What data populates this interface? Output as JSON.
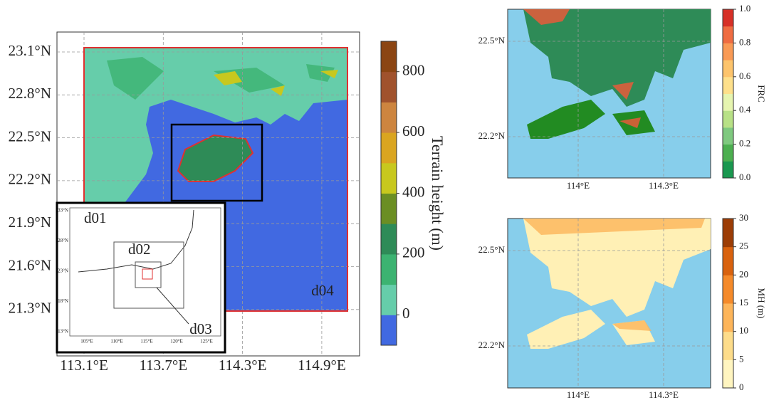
{
  "main_map": {
    "lat_ticks": [
      "23.1°N",
      "22.8°N",
      "22.5°N",
      "22.2°N",
      "21.9°N",
      "21.6°N",
      "21.3°N"
    ],
    "lon_ticks": [
      "113.1°E",
      "113.7°E",
      "114.3°E",
      "114.9°E"
    ],
    "domain_label": "d04",
    "colorbar": {
      "label": "Terrain height (m)",
      "ticks": [
        "0",
        "200",
        "400",
        "600",
        "800"
      ],
      "colors": [
        "#4169e1",
        "#66cdaa",
        "#3cb371",
        "#2e8b57",
        "#6b8e23",
        "#c8c81e",
        "#daa520",
        "#cd853f",
        "#a0522d",
        "#8b4513"
      ]
    }
  },
  "inset": {
    "labels": [
      "d01",
      "d02",
      "d03"
    ],
    "lat_ticks": [
      "33°N",
      "28°N",
      "23°N",
      "18°N",
      "13°N"
    ],
    "lon_ticks": [
      "105°E",
      "110°E",
      "115°E",
      "120°E",
      "125°E"
    ]
  },
  "frc_map": {
    "lat_ticks": [
      "22.5°N",
      "22.2°N"
    ],
    "lon_ticks": [
      "114°E",
      "114.3°E"
    ],
    "colorbar": {
      "label": "FRC",
      "ticks": [
        "0.0",
        "0.2",
        "0.4",
        "0.6",
        "0.8",
        "1.0"
      ],
      "colors": [
        "#1a9850",
        "#4caf50",
        "#7fc97f",
        "#b8e186",
        "#e6f5b0",
        "#fee08b",
        "#fdc46c",
        "#f99a55",
        "#ef6c42",
        "#d73027"
      ]
    }
  },
  "mh_map": {
    "lat_ticks": [
      "22.5°N",
      "22.2°N"
    ],
    "lon_ticks": [
      "114°E",
      "114.3°E"
    ],
    "colorbar": {
      "label": "MH (m)",
      "ticks": [
        "0",
        "5",
        "10",
        "15",
        "20",
        "25",
        "30"
      ],
      "colors": [
        "#fff5c0",
        "#fddc8a",
        "#fdb55a",
        "#f58a2a",
        "#d9620e",
        "#9c3d06"
      ]
    }
  }
}
